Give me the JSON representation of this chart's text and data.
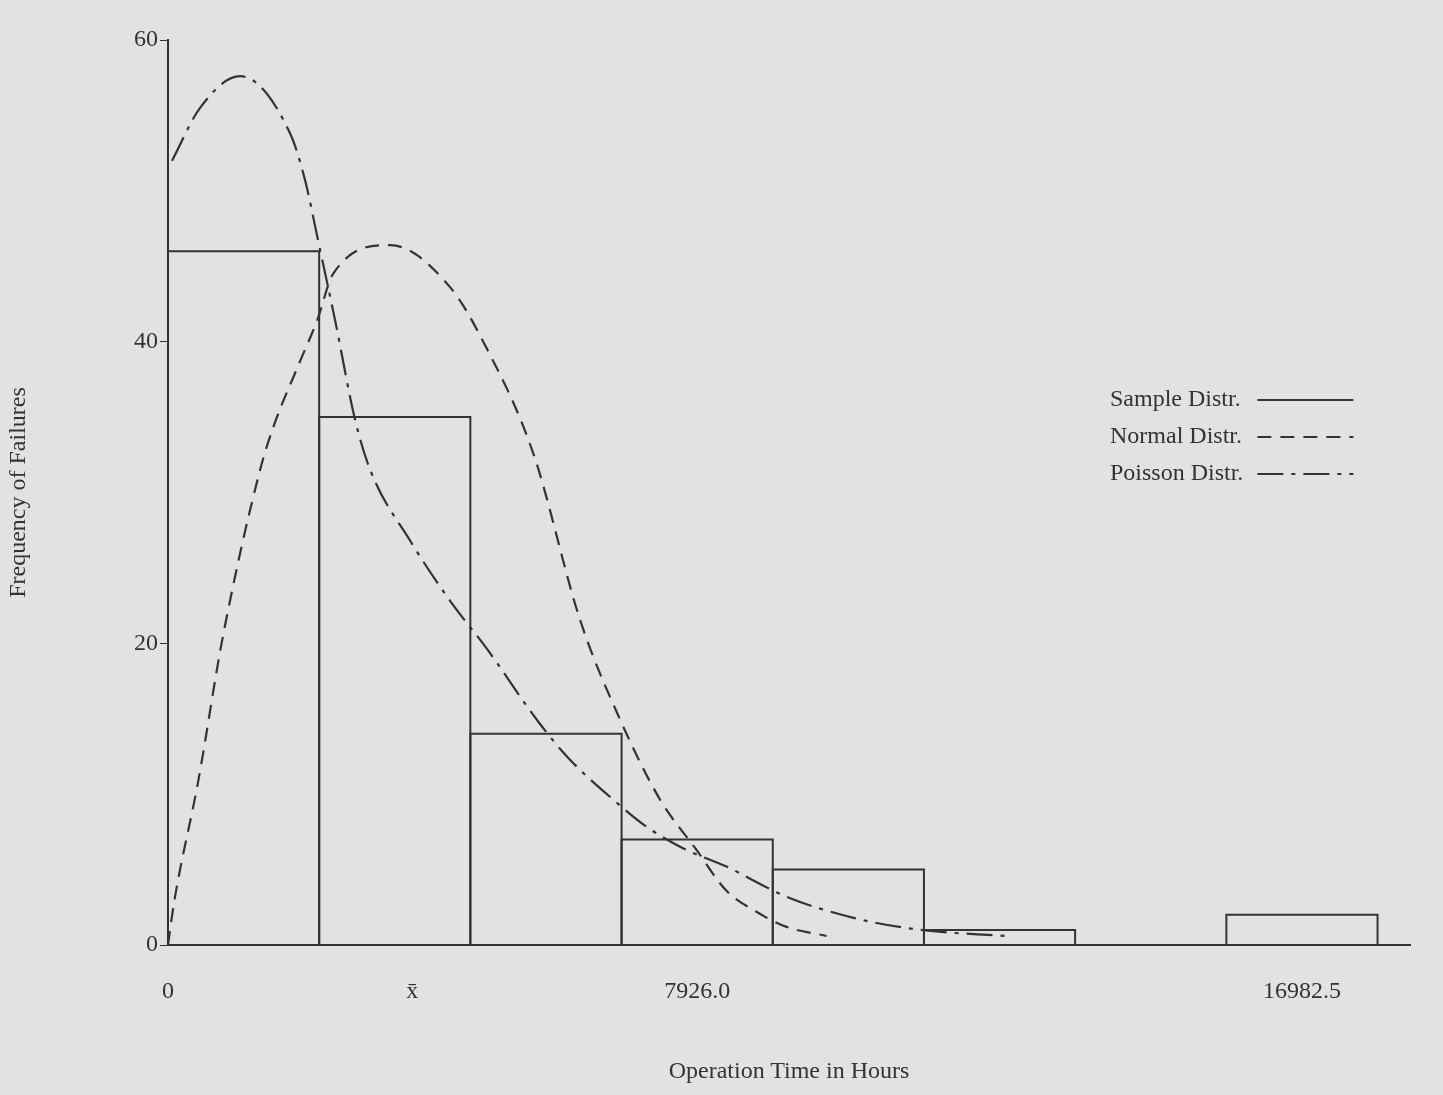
{
  "chart_data": {
    "type": "histogram",
    "xlabel": "Operation Time in Hours",
    "ylabel": "Frequency of Failures",
    "xlim": [
      0,
      18600
    ],
    "ylim": [
      0,
      60
    ],
    "xticks": [
      0,
      {
        "value": 3657,
        "label": "x̄"
      },
      {
        "value": 7926,
        "label": "7926.0"
      },
      {
        "value": 16982.5,
        "label": "16982.5"
      }
    ],
    "yticks": [
      0,
      20,
      40,
      60
    ],
    "grid": false,
    "legend": "right",
    "marker": "none",
    "series": [
      {
        "name": "Sample Distr.",
        "type": "histogram",
        "color": "#333333",
        "line_style": "solid",
        "bins": [
          0,
          2264,
          4528,
          6793,
          9057,
          11321,
          13585,
          15850,
          18114
        ],
        "values": [
          46,
          35,
          14,
          7,
          5,
          1,
          0,
          2
        ]
      },
      {
        "name": "Normal Distr.",
        "type": "line",
        "color": "#333333",
        "line_style": "dashed",
        "x": [
          0,
          90,
          450,
          824,
          1379,
          1574,
          1978,
          2233,
          2473,
          3327,
          4227,
          4721,
          5470,
          6175,
          6775,
          7374,
          7899,
          8363,
          8813,
          9263,
          9862
        ],
        "values": [
          0,
          2.8,
          10.8,
          20.5,
          31.5,
          34.3,
          38.7,
          41.4,
          44.5,
          46.4,
          43.6,
          40,
          32.6,
          21.5,
          14.9,
          9.6,
          6.4,
          3.6,
          2.2,
          1.2,
          0.6
        ]
      },
      {
        "name": "Poisson Distr.",
        "type": "line",
        "color": "#333333",
        "line_style": "dashdot",
        "x": [
          60,
          480,
          1079,
          1829,
          2053,
          2248,
          2503,
          2803,
          3028,
          3627,
          4227,
          4766,
          5546,
          5995,
          6730,
          7179,
          7719,
          8363,
          9263,
          10267,
          11271,
          12545
        ],
        "values": [
          52,
          55.5,
          57.6,
          53.8,
          50.7,
          46.7,
          41.4,
          34.8,
          31.5,
          26.8,
          22.8,
          19.7,
          14.8,
          12.4,
          9.4,
          7.8,
          6.4,
          5.2,
          3.2,
          1.8,
          1.0,
          0.6
        ]
      }
    ]
  }
}
